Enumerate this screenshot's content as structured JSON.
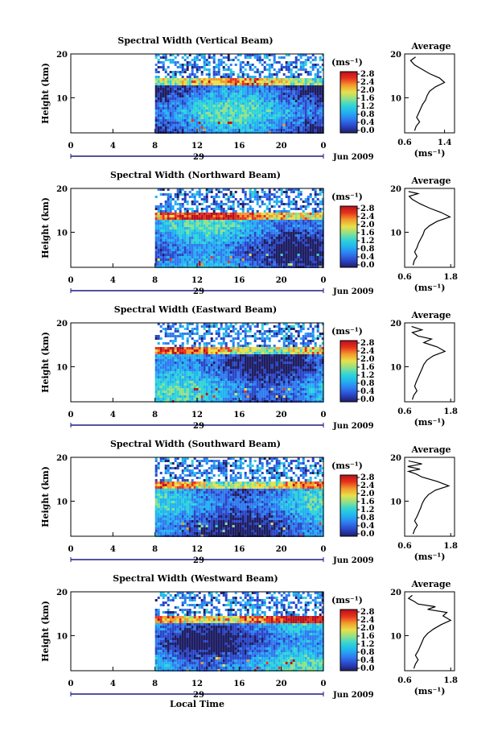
{
  "figure": {
    "xlabel": "Local Time",
    "date_label": "Jun 2009",
    "day_label": "29"
  },
  "colorbar": {
    "unit_label": "(ms⁻¹)",
    "ticks": [
      "0.0",
      "0.4",
      "0.8",
      "1.2",
      "1.6",
      "2.0",
      "2.4",
      "2.8"
    ],
    "colors": [
      "#1e1e64",
      "#2a46c8",
      "#2f7bf0",
      "#22b2f0",
      "#2fd4d8",
      "#8fe08a",
      "#e8e04a",
      "#f29a2c",
      "#e8321c",
      "#b8101c"
    ]
  },
  "chart_data": [
    {
      "type": "heatmap",
      "title": "Spectral Width (Vertical Beam)",
      "ylabel": "Height (km)",
      "xlabel": "Local Time",
      "x_ticks": [
        "0",
        "4",
        "8",
        "12",
        "16",
        "20",
        "0"
      ],
      "xlim": [
        0,
        24
      ],
      "ylim": [
        2,
        20
      ],
      "y_ticks": [
        10,
        20
      ],
      "data_start_hour": 8,
      "colorbar_range": [
        0.0,
        2.8
      ],
      "profile": {
        "title": "Average",
        "xlabel": "(ms⁻¹)",
        "x_ticks": [
          "0.6",
          "1.4"
        ],
        "xlim": [
          0.6,
          1.6
        ],
        "y_ticks": [
          10,
          20
        ],
        "points": [
          [
            0.8,
            2.5
          ],
          [
            0.83,
            3.5
          ],
          [
            0.9,
            4.5
          ],
          [
            0.84,
            5.5
          ],
          [
            0.88,
            6.5
          ],
          [
            0.92,
            7.5
          ],
          [
            0.96,
            8.5
          ],
          [
            1.02,
            9.5
          ],
          [
            1.05,
            10.5
          ],
          [
            1.1,
            11.5
          ],
          [
            1.22,
            12.5
          ],
          [
            1.4,
            13.5
          ],
          [
            1.3,
            14.5
          ],
          [
            1.1,
            15.5
          ],
          [
            0.95,
            16.5
          ],
          [
            0.8,
            17.5
          ],
          [
            0.72,
            18.5
          ],
          [
            0.82,
            19.3
          ]
        ]
      }
    },
    {
      "type": "heatmap",
      "title": "Spectral Width (Northward Beam)",
      "ylabel": "Height (km)",
      "xlabel": "Local Time",
      "x_ticks": [
        "0",
        "4",
        "8",
        "12",
        "16",
        "20",
        "0"
      ],
      "xlim": [
        0,
        24
      ],
      "ylim": [
        2,
        20
      ],
      "y_ticks": [
        10,
        20
      ],
      "data_start_hour": 8,
      "colorbar_range": [
        0.0,
        2.8
      ],
      "profile": {
        "title": "Average",
        "xlabel": "(ms⁻¹)",
        "x_ticks": [
          "0.6",
          "1.8"
        ],
        "xlim": [
          0.6,
          1.9
        ],
        "y_ticks": [
          10,
          20
        ],
        "points": [
          [
            0.82,
            2.5
          ],
          [
            0.85,
            3.5
          ],
          [
            0.92,
            4.5
          ],
          [
            0.86,
            5.5
          ],
          [
            0.92,
            6.5
          ],
          [
            0.96,
            7.5
          ],
          [
            1.02,
            8.5
          ],
          [
            1.08,
            9.5
          ],
          [
            1.12,
            10.5
          ],
          [
            1.25,
            11.5
          ],
          [
            1.45,
            12.5
          ],
          [
            1.78,
            13.5
          ],
          [
            1.55,
            14.5
          ],
          [
            1.25,
            15.5
          ],
          [
            1.0,
            16.5
          ],
          [
            0.8,
            17.5
          ],
          [
            0.72,
            18.2
          ],
          [
            0.95,
            18.8
          ],
          [
            0.7,
            19.3
          ]
        ]
      }
    },
    {
      "type": "heatmap",
      "title": "Spectral Width (Eastward Beam)",
      "ylabel": "Height (km)",
      "xlabel": "Local Time",
      "x_ticks": [
        "0",
        "4",
        "8",
        "12",
        "16",
        "20",
        "0"
      ],
      "xlim": [
        0,
        24
      ],
      "ylim": [
        2,
        20
      ],
      "y_ticks": [
        10,
        20
      ],
      "data_start_hour": 8,
      "colorbar_range": [
        0.0,
        2.8
      ],
      "profile": {
        "title": "Average",
        "xlabel": "(ms⁻¹)",
        "x_ticks": [
          "0.6",
          "1.8"
        ],
        "xlim": [
          0.6,
          1.9
        ],
        "y_ticks": [
          10,
          20
        ],
        "points": [
          [
            0.8,
            2.5
          ],
          [
            0.84,
            3.5
          ],
          [
            0.92,
            4.5
          ],
          [
            0.86,
            5.5
          ],
          [
            0.9,
            6.5
          ],
          [
            0.95,
            7.5
          ],
          [
            1.0,
            8.5
          ],
          [
            1.05,
            9.5
          ],
          [
            1.1,
            10.5
          ],
          [
            1.18,
            11.5
          ],
          [
            1.35,
            12.5
          ],
          [
            1.65,
            13.5
          ],
          [
            1.45,
            14.5
          ],
          [
            1.1,
            15.5
          ],
          [
            1.3,
            16.3
          ],
          [
            0.95,
            17.0
          ],
          [
            0.8,
            17.8
          ],
          [
            1.05,
            18.4
          ],
          [
            0.78,
            19.2
          ]
        ]
      }
    },
    {
      "type": "heatmap",
      "title": "Spectral Width (Southward Beam)",
      "ylabel": "Height (km)",
      "xlabel": "Local Time",
      "x_ticks": [
        "0",
        "4",
        "8",
        "12",
        "16",
        "20",
        "0"
      ],
      "xlim": [
        0,
        24
      ],
      "ylim": [
        2,
        20
      ],
      "y_ticks": [
        10,
        20
      ],
      "data_start_hour": 8,
      "colorbar_range": [
        0.0,
        2.8
      ],
      "profile": {
        "title": "Average",
        "xlabel": "(ms⁻¹)",
        "x_ticks": [
          "0.6",
          "1.8"
        ],
        "xlim": [
          0.6,
          1.9
        ],
        "y_ticks": [
          10,
          20
        ],
        "points": [
          [
            0.82,
            2.5
          ],
          [
            0.86,
            3.5
          ],
          [
            0.93,
            4.5
          ],
          [
            0.86,
            5.5
          ],
          [
            0.92,
            6.5
          ],
          [
            0.97,
            7.5
          ],
          [
            1.02,
            8.5
          ],
          [
            1.06,
            9.5
          ],
          [
            1.12,
            10.5
          ],
          [
            1.22,
            11.5
          ],
          [
            1.4,
            12.5
          ],
          [
            1.75,
            13.5
          ],
          [
            1.45,
            14.5
          ],
          [
            1.05,
            15.5
          ],
          [
            0.9,
            16.2
          ],
          [
            0.7,
            16.8
          ],
          [
            1.0,
            17.3
          ],
          [
            0.68,
            17.9
          ],
          [
            1.05,
            18.5
          ],
          [
            0.7,
            19.2
          ]
        ]
      }
    },
    {
      "type": "heatmap",
      "title": "Spectral Width (Westward Beam)",
      "ylabel": "Height (km)",
      "xlabel": "Local Time",
      "x_ticks": [
        "0",
        "4",
        "8",
        "12",
        "16",
        "20",
        "0"
      ],
      "xlim": [
        0,
        24
      ],
      "ylim": [
        2,
        20
      ],
      "y_ticks": [
        10,
        20
      ],
      "data_start_hour": 8,
      "colorbar_range": [
        0.0,
        2.8
      ],
      "profile": {
        "title": "Average",
        "xlabel": "(ms⁻¹)",
        "x_ticks": [
          "0.6",
          "1.8"
        ],
        "xlim": [
          0.6,
          1.9
        ],
        "y_ticks": [
          10,
          20
        ],
        "points": [
          [
            0.84,
            2.5
          ],
          [
            0.88,
            3.5
          ],
          [
            0.95,
            4.5
          ],
          [
            0.88,
            5.5
          ],
          [
            0.95,
            6.5
          ],
          [
            1.0,
            7.5
          ],
          [
            1.05,
            8.5
          ],
          [
            1.1,
            9.5
          ],
          [
            1.2,
            10.5
          ],
          [
            1.35,
            11.5
          ],
          [
            1.55,
            12.5
          ],
          [
            1.8,
            13.5
          ],
          [
            1.6,
            14.5
          ],
          [
            1.7,
            15.3
          ],
          [
            1.2,
            16.0
          ],
          [
            1.4,
            16.6
          ],
          [
            0.95,
            17.2
          ],
          [
            0.85,
            17.8
          ],
          [
            0.7,
            18.5
          ],
          [
            0.8,
            19.2
          ]
        ]
      }
    }
  ]
}
